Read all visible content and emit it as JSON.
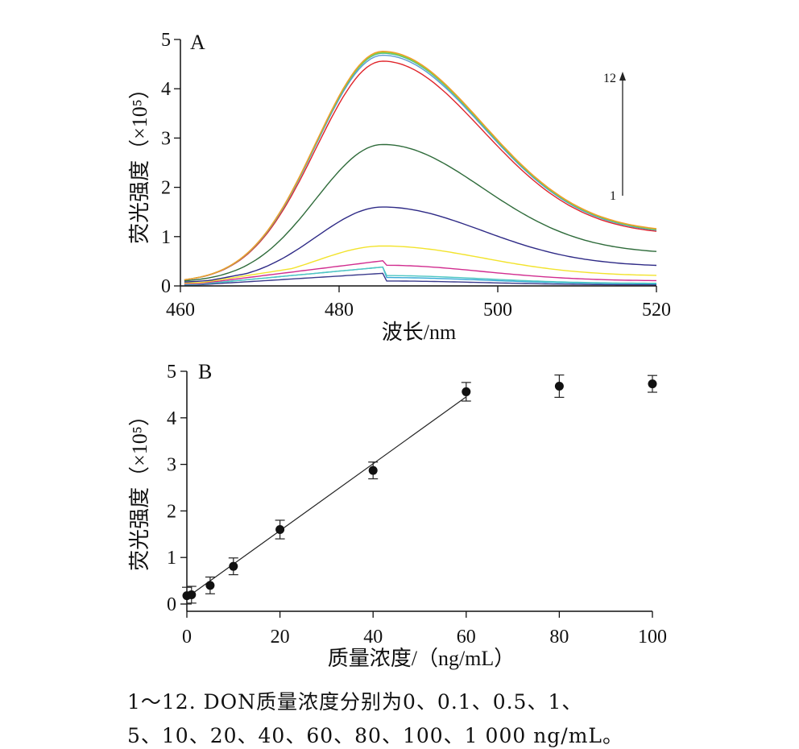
{
  "chart_data": [
    {
      "panel": "A",
      "type": "line",
      "xlabel": "波长/nm",
      "ylabel": "荧光强度（×10⁵）",
      "xlim": [
        460,
        520
      ],
      "ylim": [
        0,
        5
      ],
      "xticks": [
        "460",
        "480",
        "500",
        "520"
      ],
      "yticks": [
        "0",
        "1",
        "2",
        "3",
        "4",
        "5"
      ],
      "annotation": {
        "from": "1",
        "to": "12"
      },
      "series": [
        {
          "color": "#3a3a8c",
          "peak": 0.1,
          "start": 0.02,
          "end": 0.02
        },
        {
          "color": "#35a9d6",
          "peak": 0.17,
          "start": 0.03,
          "end": 0.04
        },
        {
          "color": "#4fc7c2",
          "peak": 0.21,
          "start": 0.03,
          "end": 0.05
        },
        {
          "color": "#d12d8f",
          "peak": 0.42,
          "start": 0.04,
          "end": 0.1
        },
        {
          "color": "#f2e32c",
          "peak": 0.81,
          "start": 0.05,
          "end": 0.2
        },
        {
          "color": "#2e2a86",
          "peak": 1.6,
          "start": 0.06,
          "end": 0.39
        },
        {
          "color": "#2e6b3a",
          "peak": 2.87,
          "start": 0.07,
          "end": 0.65
        },
        {
          "color": "#e0242a",
          "peak": 4.56,
          "start": 0.07,
          "end": 1.03
        },
        {
          "color": "#5b9bd5",
          "peak": 4.68,
          "start": 0.07,
          "end": 1.05
        },
        {
          "color": "#4bbf8f",
          "peak": 4.72,
          "start": 0.07,
          "end": 1.06
        },
        {
          "color": "#9acd32",
          "peak": 4.74,
          "start": 0.07,
          "end": 1.07
        },
        {
          "color": "#f29b2c",
          "peak": 4.76,
          "start": 0.07,
          "end": 1.08
        }
      ],
      "peak_x": 485.5
    },
    {
      "panel": "B",
      "type": "scatter",
      "xlabel": "质量浓度/（ng/mL）",
      "ylabel": "荧光强度（×10⁵）",
      "xlim": [
        0,
        100
      ],
      "ylim": [
        0,
        5
      ],
      "xticks": [
        "0",
        "20",
        "40",
        "60",
        "80",
        "100"
      ],
      "yticks": [
        "0",
        "1",
        "2",
        "3",
        "4",
        "5"
      ],
      "points": [
        {
          "x": 0,
          "y": 0.18,
          "err": 0.18
        },
        {
          "x": 1,
          "y": 0.2,
          "err": 0.18
        },
        {
          "x": 5,
          "y": 0.4,
          "err": 0.18
        },
        {
          "x": 10,
          "y": 0.81,
          "err": 0.18
        },
        {
          "x": 20,
          "y": 1.6,
          "err": 0.2
        },
        {
          "x": 40,
          "y": 2.87,
          "err": 0.18
        },
        {
          "x": 60,
          "y": 4.56,
          "err": 0.2
        },
        {
          "x": 80,
          "y": 4.68,
          "err": 0.24
        },
        {
          "x": 100,
          "y": 4.73,
          "err": 0.18
        }
      ],
      "fit_line": {
        "x": [
          0,
          60
        ],
        "y": [
          0.14,
          4.45
        ]
      }
    }
  ],
  "caption": {
    "line1": "1～12. DON质量浓度分别为0、0.1、0.5、1、",
    "line2": "5、10、20、40、60、80、100、1 000 ng/mL。"
  }
}
